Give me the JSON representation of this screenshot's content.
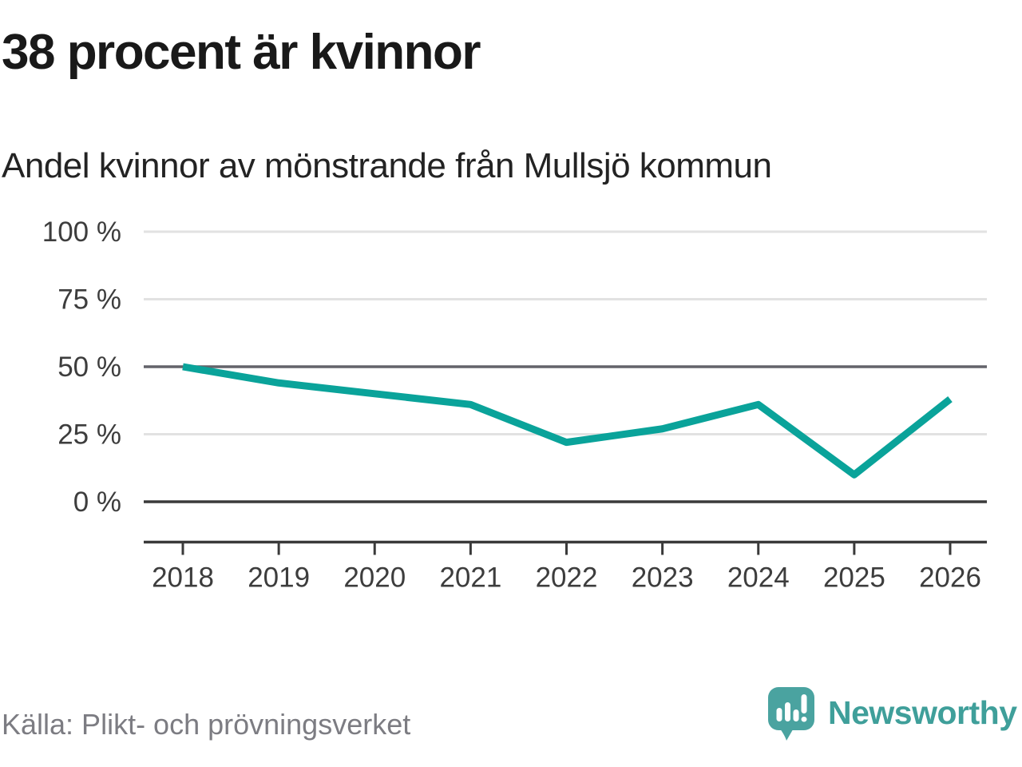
{
  "header": {
    "title": "38 procent är kvinnor",
    "subtitle": "Andel kvinnor av mönstrande från Mullsjö kommun"
  },
  "chart_data": {
    "type": "line",
    "title": "38 procent är kvinnor",
    "subtitle": "Andel kvinnor av mönstrande från Mullsjö kommun",
    "x": [
      "2018",
      "2019",
      "2020",
      "2021",
      "2022",
      "2023",
      "2024",
      "2025",
      "2026"
    ],
    "series": [
      {
        "name": "Andel kvinnor av mönstrande",
        "color": "#0aa39a",
        "values": [
          50,
          44,
          40,
          36,
          22,
          27,
          36,
          10,
          38
        ]
      }
    ],
    "xlabel": "",
    "ylabel": "",
    "ylim": [
      0,
      100
    ],
    "yticks": [
      0,
      25,
      50,
      75,
      100
    ],
    "ytick_suffix": " %",
    "grid": true,
    "legend": "none",
    "emphasized_gridlines": [
      {
        "value": 50,
        "color": "#63636a"
      },
      {
        "value": 0,
        "color": "#3a3a3a"
      }
    ]
  },
  "footer": {
    "source": "Källa: Plikt- och prövningsverket",
    "brand": "Newsworthy"
  },
  "colors": {
    "accent": "#0aa39a",
    "grid_light": "#e2e2e2",
    "axis": "#3a3a3a",
    "tick_text": "#3d3d3d",
    "title_text": "#191919",
    "muted_text": "#7c7c82",
    "brand_teal": "#3f9f9a",
    "logo_mark": "#4aa3a0"
  }
}
